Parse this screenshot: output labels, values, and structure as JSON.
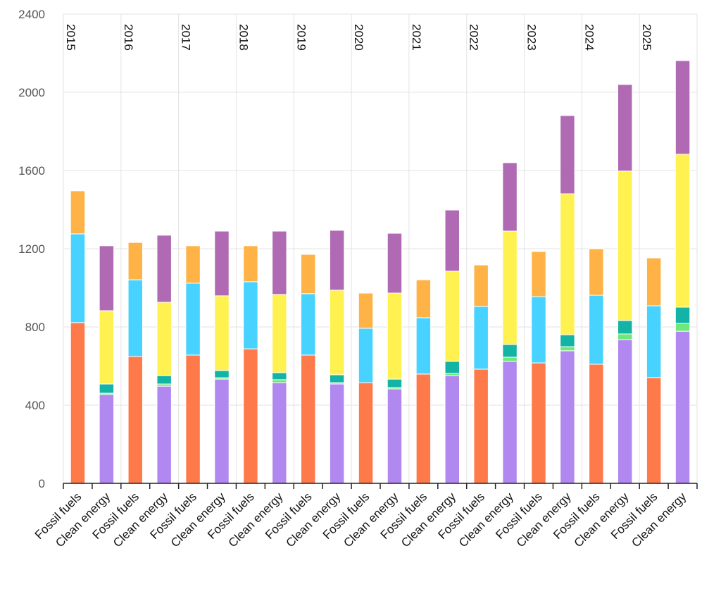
{
  "chart_data": {
    "type": "stacked-bar",
    "groups": [
      "2015",
      "2016",
      "2017",
      "2018",
      "2019",
      "2020",
      "2021",
      "2022",
      "2023",
      "2024",
      "2025"
    ],
    "categories": [
      "Fossil fuels",
      "Clean energy",
      "Fossil fuels",
      "Clean energy",
      "Fossil fuels",
      "Clean energy",
      "Fossil fuels",
      "Clean energy",
      "Fossil fuels",
      "Clean energy",
      "Fossil fuels",
      "Clean energy",
      "Fossil fuels",
      "Clean energy",
      "Fossil fuels",
      "Clean energy",
      "Fossil fuels",
      "Clean energy",
      "Fossil fuels",
      "Clean energy",
      "Fossil fuels",
      "Clean energy"
    ],
    "series": [
      {
        "color": "#ff7a4a",
        "values": [
          822,
          null,
          649,
          null,
          656,
          null,
          688,
          null,
          656,
          null,
          515,
          null,
          559,
          null,
          584,
          null,
          616,
          null,
          609,
          null,
          541,
          null
        ]
      },
      {
        "color": "#47d2ff",
        "values": [
          454,
          null,
          392,
          null,
          368,
          null,
          343,
          null,
          314,
          null,
          278,
          null,
          288,
          null,
          321,
          null,
          339,
          null,
          353,
          null,
          367,
          null
        ]
      },
      {
        "color": "#ffb347",
        "values": [
          220,
          null,
          191,
          null,
          191,
          null,
          184,
          null,
          201,
          null,
          180,
          null,
          194,
          null,
          212,
          null,
          231,
          null,
          238,
          null,
          245,
          null
        ]
      },
      {
        "color": "#b088f0",
        "values": [
          null,
          454,
          null,
          497,
          null,
          533,
          null,
          515,
          null,
          508,
          null,
          483,
          null,
          551,
          null,
          624,
          null,
          678,
          null,
          735,
          null,
          778
        ]
      },
      {
        "color": "#6ee87a",
        "values": [
          null,
          7,
          null,
          11,
          null,
          7,
          null,
          15,
          null,
          7,
          null,
          7,
          null,
          11,
          null,
          21,
          null,
          21,
          null,
          29,
          null,
          40
        ]
      },
      {
        "color": "#13b3a5",
        "values": [
          null,
          47,
          null,
          43,
          null,
          37,
          null,
          36,
          null,
          40,
          null,
          43,
          null,
          62,
          null,
          65,
          null,
          61,
          null,
          69,
          null,
          83
        ]
      },
      {
        "color": "#fff150",
        "values": [
          null,
          375,
          null,
          375,
          null,
          382,
          null,
          400,
          null,
          433,
          null,
          440,
          null,
          461,
          null,
          580,
          null,
          721,
          null,
          764,
          null,
          782
        ]
      },
      {
        "color": "#b06ab3",
        "values": [
          null,
          332,
          null,
          343,
          null,
          331,
          null,
          324,
          null,
          306,
          null,
          306,
          null,
          313,
          null,
          350,
          null,
          400,
          null,
          443,
          null,
          479
        ]
      }
    ],
    "ylim": [
      0,
      2400
    ],
    "yticks": [
      0,
      400,
      800,
      1200,
      1600,
      2000,
      2400
    ],
    "grid": true
  }
}
